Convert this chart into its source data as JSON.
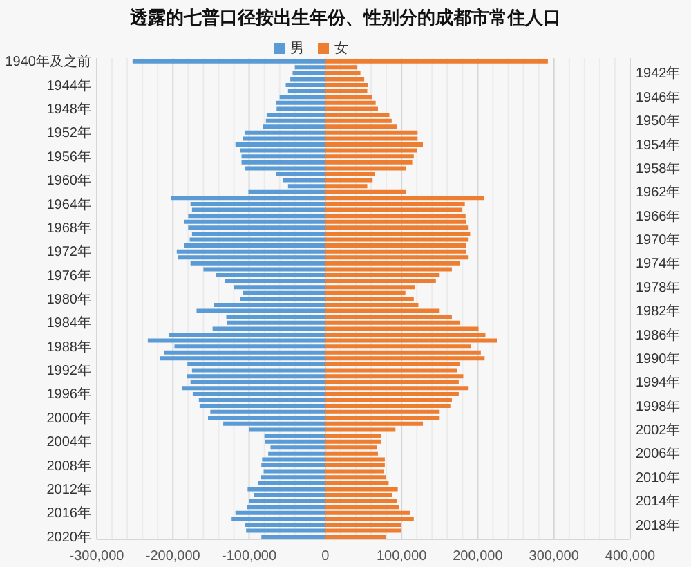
{
  "chart_data": {
    "type": "bar",
    "orientation": "horizontal",
    "stacked": true,
    "title": "透露的七普口径按出生年份、性别分的成都市常住人口",
    "categories": [
      "1940年及之前",
      null,
      "1942年",
      null,
      "1944年",
      null,
      "1946年",
      null,
      "1948年",
      null,
      "1950年",
      null,
      "1952年",
      null,
      "1954年",
      null,
      "1956年",
      null,
      "1958年",
      null,
      "1960年",
      null,
      "1962年",
      null,
      "1964年",
      null,
      "1966年",
      null,
      "1968年",
      null,
      "1970年",
      null,
      "1972年",
      null,
      "1974年",
      null,
      "1976年",
      null,
      "1978年",
      null,
      "1980年",
      null,
      "1982年",
      null,
      "1984年",
      null,
      "1986年",
      null,
      "1988年",
      null,
      "1990年",
      null,
      "1992年",
      null,
      "1994年",
      null,
      "1996年",
      null,
      "1998年",
      null,
      "2000年",
      null,
      "2002年",
      null,
      "2004年",
      null,
      "2006年",
      null,
      "2008年",
      null,
      "2010年",
      null,
      "2012年",
      null,
      "2014年",
      null,
      "2016年",
      null,
      "2018年",
      null,
      "2020年"
    ],
    "series": [
      {
        "name": "男",
        "color": "#5b9bd5",
        "values": [
          -253000,
          -40000,
          -43000,
          -46000,
          -52000,
          -49000,
          -60000,
          -65000,
          -64000,
          -77000,
          -78000,
          -82000,
          -106000,
          -108000,
          -118000,
          -112000,
          -110000,
          -110000,
          -105000,
          -65000,
          -56000,
          -49000,
          -101000,
          -203000,
          -177000,
          -175000,
          -180000,
          -185000,
          -180000,
          -175000,
          -178000,
          -185000,
          -195000,
          -193000,
          -177000,
          -160000,
          -144000,
          -132000,
          -120000,
          -108000,
          -112000,
          -146000,
          -169000,
          -130000,
          -129000,
          -148000,
          -205000,
          -233000,
          -198000,
          -212000,
          -217000,
          -181000,
          -175000,
          -182000,
          -177000,
          -188000,
          -174000,
          -166000,
          -165000,
          -151000,
          -154000,
          -134000,
          -100000,
          -80000,
          -79000,
          -72000,
          -75000,
          -83000,
          -84000,
          -81000,
          -85000,
          -88000,
          -102000,
          -94000,
          -100000,
          -103000,
          -118000,
          -123000,
          -105000,
          -104000,
          -84000
        ]
      },
      {
        "name": "女",
        "color": "#ed7d31",
        "values": [
          292000,
          42000,
          46000,
          51000,
          56000,
          55000,
          61000,
          66000,
          69000,
          84000,
          87000,
          94000,
          121000,
          121000,
          128000,
          120000,
          116000,
          114000,
          106000,
          65000,
          62000,
          55000,
          106000,
          208000,
          183000,
          179000,
          184000,
          185000,
          188000,
          190000,
          188000,
          185000,
          185000,
          188000,
          177000,
          166000,
          150000,
          145000,
          118000,
          105000,
          116000,
          122000,
          150000,
          166000,
          177000,
          201000,
          210000,
          225000,
          191000,
          204000,
          209000,
          176000,
          173000,
          181000,
          175000,
          188000,
          175000,
          166000,
          164000,
          150000,
          150000,
          128000,
          92000,
          73000,
          73000,
          68000,
          69000,
          78000,
          78000,
          77000,
          79000,
          83000,
          95000,
          88000,
          94000,
          97000,
          111000,
          116000,
          99000,
          99000,
          79000
        ]
      }
    ],
    "xlim": [
      -300000,
      400000
    ],
    "xticks": [
      {
        "value": -300000,
        "label": "-300,000"
      },
      {
        "value": -280000,
        "label": null
      },
      {
        "value": -260000,
        "label": null
      },
      {
        "value": -240000,
        "label": null
      },
      {
        "value": -220000,
        "label": null
      },
      {
        "value": -200000,
        "label": "-200,000"
      },
      {
        "value": -180000,
        "label": null
      },
      {
        "value": -160000,
        "label": null
      },
      {
        "value": -140000,
        "label": null
      },
      {
        "value": -120000,
        "label": null
      },
      {
        "value": -100000,
        "label": "-100,000"
      },
      {
        "value": -80000,
        "label": null
      },
      {
        "value": -60000,
        "label": null
      },
      {
        "value": -40000,
        "label": null
      },
      {
        "value": -20000,
        "label": null
      },
      0,
      {
        "value": 20000,
        "label": null
      },
      {
        "value": 40000,
        "label": null
      },
      {
        "value": 60000,
        "label": null
      },
      {
        "value": 80000,
        "label": null
      },
      {
        "value": 100000,
        "label": "100,000"
      },
      {
        "value": 120000,
        "label": null
      },
      {
        "value": 140000,
        "label": null
      },
      {
        "value": 160000,
        "label": null
      },
      {
        "value": 180000,
        "label": null
      },
      {
        "value": 200000,
        "label": "200,000"
      },
      {
        "value": 220000,
        "label": null
      },
      {
        "value": 240000,
        "label": null
      },
      {
        "value": 260000,
        "label": null
      },
      {
        "value": 280000,
        "label": null
      },
      {
        "value": 300000,
        "label": "300,000"
      },
      {
        "value": 320000,
        "label": null
      },
      {
        "value": 340000,
        "label": null
      },
      {
        "value": 360000,
        "label": null
      },
      {
        "value": 380000,
        "label": null
      },
      {
        "value": 400000,
        "label": "400,000"
      }
    ],
    "grid": "x",
    "legend": "top"
  }
}
